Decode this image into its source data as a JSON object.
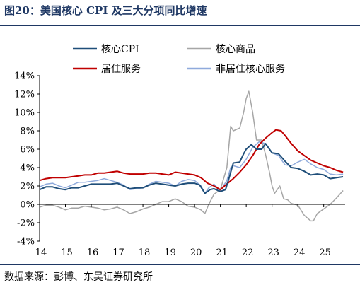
{
  "figure": {
    "title": "图20：美国核心 CPI 及三大分项同比增速",
    "source": "数据来源：彭博、东吴证券研究所"
  },
  "chart_data": {
    "type": "line",
    "title": "图20：美国核心 CPI 及三大分项同比增速",
    "xlabel": "",
    "ylabel": "",
    "xlim": [
      2014.0,
      2025.83
    ],
    "ylim": [
      -4,
      14
    ],
    "x_ticks": [
      14,
      15,
      16,
      17,
      18,
      19,
      20,
      21,
      22,
      23,
      24,
      25
    ],
    "x_tick_labels": [
      "14",
      "15",
      "16",
      "17",
      "18",
      "19",
      "20",
      "21",
      "22",
      "23",
      "24",
      "25"
    ],
    "y_ticks": [
      -4,
      -2,
      0,
      2,
      4,
      6,
      8,
      10,
      12,
      14
    ],
    "y_tick_labels": [
      "-4%",
      "-2%",
      "0%",
      "2%",
      "4%",
      "6%",
      "8%",
      "10%",
      "12%",
      "14%"
    ],
    "grid": false,
    "legend_position": "top",
    "series": [
      {
        "name": "核心CPI",
        "color": "#1f4e79",
        "width": 2,
        "points": [
          [
            2014.0,
            1.6
          ],
          [
            2014.25,
            1.9
          ],
          [
            2014.5,
            1.9
          ],
          [
            2014.75,
            1.7
          ],
          [
            2015.0,
            1.6
          ],
          [
            2015.25,
            1.8
          ],
          [
            2015.5,
            1.8
          ],
          [
            2015.75,
            2.0
          ],
          [
            2016.0,
            2.2
          ],
          [
            2016.25,
            2.2
          ],
          [
            2016.5,
            2.2
          ],
          [
            2016.75,
            2.2
          ],
          [
            2017.0,
            2.3
          ],
          [
            2017.25,
            2.0
          ],
          [
            2017.5,
            1.7
          ],
          [
            2017.75,
            1.8
          ],
          [
            2018.0,
            1.8
          ],
          [
            2018.25,
            2.1
          ],
          [
            2018.5,
            2.3
          ],
          [
            2018.75,
            2.2
          ],
          [
            2019.0,
            2.1
          ],
          [
            2019.25,
            2.0
          ],
          [
            2019.5,
            2.2
          ],
          [
            2019.75,
            2.3
          ],
          [
            2020.0,
            2.3
          ],
          [
            2020.2,
            2.1
          ],
          [
            2020.4,
            1.2
          ],
          [
            2020.6,
            1.6
          ],
          [
            2020.75,
            1.7
          ],
          [
            2021.0,
            1.4
          ],
          [
            2021.2,
            1.6
          ],
          [
            2021.35,
            3.0
          ],
          [
            2021.5,
            4.5
          ],
          [
            2021.75,
            4.6
          ],
          [
            2021.9,
            5.5
          ],
          [
            2022.0,
            6.0
          ],
          [
            2022.2,
            6.5
          ],
          [
            2022.4,
            6.0
          ],
          [
            2022.6,
            6.0
          ],
          [
            2022.75,
            6.6
          ],
          [
            2023.0,
            5.6
          ],
          [
            2023.25,
            5.5
          ],
          [
            2023.5,
            4.7
          ],
          [
            2023.75,
            4.0
          ],
          [
            2024.0,
            3.9
          ],
          [
            2024.25,
            3.6
          ],
          [
            2024.5,
            3.2
          ],
          [
            2024.75,
            3.3
          ],
          [
            2025.0,
            3.2
          ],
          [
            2025.25,
            2.8
          ],
          [
            2025.5,
            2.9
          ],
          [
            2025.75,
            3.0
          ]
        ]
      },
      {
        "name": "核心商品",
        "color": "#a6a6a6",
        "width": 1.5,
        "points": [
          [
            2014.0,
            -0.3
          ],
          [
            2014.25,
            -0.1
          ],
          [
            2014.5,
            -0.1
          ],
          [
            2014.75,
            -0.3
          ],
          [
            2015.0,
            -0.6
          ],
          [
            2015.25,
            -0.4
          ],
          [
            2015.5,
            -0.4
          ],
          [
            2015.75,
            -0.2
          ],
          [
            2016.0,
            -0.3
          ],
          [
            2016.25,
            -0.4
          ],
          [
            2016.5,
            -0.6
          ],
          [
            2016.75,
            -0.5
          ],
          [
            2017.0,
            -0.3
          ],
          [
            2017.25,
            -0.6
          ],
          [
            2017.5,
            -1.0
          ],
          [
            2017.75,
            -0.8
          ],
          [
            2018.0,
            -0.5
          ],
          [
            2018.25,
            -0.3
          ],
          [
            2018.5,
            0.0
          ],
          [
            2018.75,
            0.3
          ],
          [
            2019.0,
            0.3
          ],
          [
            2019.25,
            0.6
          ],
          [
            2019.5,
            0.3
          ],
          [
            2019.75,
            -0.2
          ],
          [
            2020.0,
            -0.3
          ],
          [
            2020.25,
            -0.6
          ],
          [
            2020.4,
            -1.0
          ],
          [
            2020.55,
            0.0
          ],
          [
            2020.75,
            1.1
          ],
          [
            2021.0,
            1.6
          ],
          [
            2021.25,
            4.0
          ],
          [
            2021.4,
            8.5
          ],
          [
            2021.5,
            8.0
          ],
          [
            2021.75,
            8.3
          ],
          [
            2021.9,
            10.0
          ],
          [
            2022.0,
            11.5
          ],
          [
            2022.1,
            12.3
          ],
          [
            2022.25,
            10.0
          ],
          [
            2022.4,
            7.0
          ],
          [
            2022.6,
            7.0
          ],
          [
            2022.75,
            5.4
          ],
          [
            2022.9,
            3.5
          ],
          [
            2023.0,
            2.0
          ],
          [
            2023.1,
            1.2
          ],
          [
            2023.3,
            2.0
          ],
          [
            2023.45,
            0.6
          ],
          [
            2023.6,
            0.5
          ],
          [
            2023.75,
            0.1
          ],
          [
            2024.0,
            -0.1
          ],
          [
            2024.25,
            -1.2
          ],
          [
            2024.5,
            -1.8
          ],
          [
            2024.6,
            -1.8
          ],
          [
            2024.75,
            -1.0
          ],
          [
            2025.0,
            -0.5
          ],
          [
            2025.25,
            0.0
          ],
          [
            2025.5,
            0.7
          ],
          [
            2025.75,
            1.5
          ]
        ]
      },
      {
        "name": "居住服务",
        "color": "#c00000",
        "width": 2,
        "points": [
          [
            2014.0,
            2.6
          ],
          [
            2014.25,
            2.8
          ],
          [
            2014.5,
            2.9
          ],
          [
            2014.75,
            2.9
          ],
          [
            2015.0,
            2.9
          ],
          [
            2015.25,
            3.0
          ],
          [
            2015.5,
            3.1
          ],
          [
            2015.75,
            3.2
          ],
          [
            2016.0,
            3.2
          ],
          [
            2016.25,
            3.4
          ],
          [
            2016.5,
            3.4
          ],
          [
            2016.75,
            3.5
          ],
          [
            2017.0,
            3.6
          ],
          [
            2017.25,
            3.4
          ],
          [
            2017.5,
            3.3
          ],
          [
            2017.75,
            3.3
          ],
          [
            2018.0,
            3.3
          ],
          [
            2018.25,
            3.4
          ],
          [
            2018.5,
            3.4
          ],
          [
            2018.75,
            3.3
          ],
          [
            2019.0,
            3.2
          ],
          [
            2019.25,
            3.5
          ],
          [
            2019.5,
            3.4
          ],
          [
            2019.75,
            3.3
          ],
          [
            2020.0,
            3.2
          ],
          [
            2020.25,
            2.9
          ],
          [
            2020.5,
            2.3
          ],
          [
            2020.75,
            2.0
          ],
          [
            2021.0,
            1.6
          ],
          [
            2021.2,
            2.1
          ],
          [
            2021.5,
            2.8
          ],
          [
            2021.75,
            3.5
          ],
          [
            2022.0,
            4.3
          ],
          [
            2022.25,
            5.3
          ],
          [
            2022.5,
            6.5
          ],
          [
            2022.75,
            7.2
          ],
          [
            2023.0,
            7.8
          ],
          [
            2023.15,
            8.1
          ],
          [
            2023.35,
            8.0
          ],
          [
            2023.5,
            7.5
          ],
          [
            2023.75,
            6.6
          ],
          [
            2024.0,
            5.8
          ],
          [
            2024.25,
            5.3
          ],
          [
            2024.5,
            4.8
          ],
          [
            2024.75,
            4.5
          ],
          [
            2025.0,
            4.2
          ],
          [
            2025.25,
            4.0
          ],
          [
            2025.5,
            3.7
          ],
          [
            2025.75,
            3.5
          ]
        ]
      },
      {
        "name": "非居住核心服务",
        "color": "#8faadc",
        "width": 1.5,
        "points": [
          [
            2014.0,
            1.9
          ],
          [
            2014.25,
            2.2
          ],
          [
            2014.5,
            2.3
          ],
          [
            2014.75,
            2.0
          ],
          [
            2015.0,
            1.8
          ],
          [
            2015.25,
            2.1
          ],
          [
            2015.5,
            2.4
          ],
          [
            2015.75,
            2.4
          ],
          [
            2016.0,
            2.5
          ],
          [
            2016.25,
            2.6
          ],
          [
            2016.5,
            2.8
          ],
          [
            2016.75,
            2.6
          ],
          [
            2017.0,
            2.4
          ],
          [
            2017.25,
            2.1
          ],
          [
            2017.5,
            1.6
          ],
          [
            2017.75,
            1.7
          ],
          [
            2018.0,
            1.8
          ],
          [
            2018.25,
            2.2
          ],
          [
            2018.5,
            2.5
          ],
          [
            2018.75,
            2.4
          ],
          [
            2019.0,
            2.3
          ],
          [
            2019.25,
            2.0
          ],
          [
            2019.5,
            2.5
          ],
          [
            2019.75,
            2.7
          ],
          [
            2020.0,
            2.6
          ],
          [
            2020.25,
            2.0
          ],
          [
            2020.4,
            1.2
          ],
          [
            2020.55,
            1.8
          ],
          [
            2020.75,
            2.2
          ],
          [
            2021.0,
            1.5
          ],
          [
            2021.25,
            2.6
          ],
          [
            2021.4,
            4.0
          ],
          [
            2021.5,
            4.2
          ],
          [
            2021.75,
            4.0
          ],
          [
            2022.0,
            4.9
          ],
          [
            2022.25,
            6.2
          ],
          [
            2022.5,
            6.8
          ],
          [
            2022.75,
            6.6
          ],
          [
            2023.0,
            5.6
          ],
          [
            2023.25,
            5.3
          ],
          [
            2023.5,
            4.3
          ],
          [
            2023.75,
            4.2
          ],
          [
            2024.0,
            4.6
          ],
          [
            2024.25,
            4.9
          ],
          [
            2024.5,
            4.4
          ],
          [
            2024.75,
            4.0
          ],
          [
            2025.0,
            3.8
          ],
          [
            2025.25,
            3.3
          ],
          [
            2025.5,
            3.2
          ],
          [
            2025.75,
            3.3
          ]
        ]
      }
    ]
  }
}
